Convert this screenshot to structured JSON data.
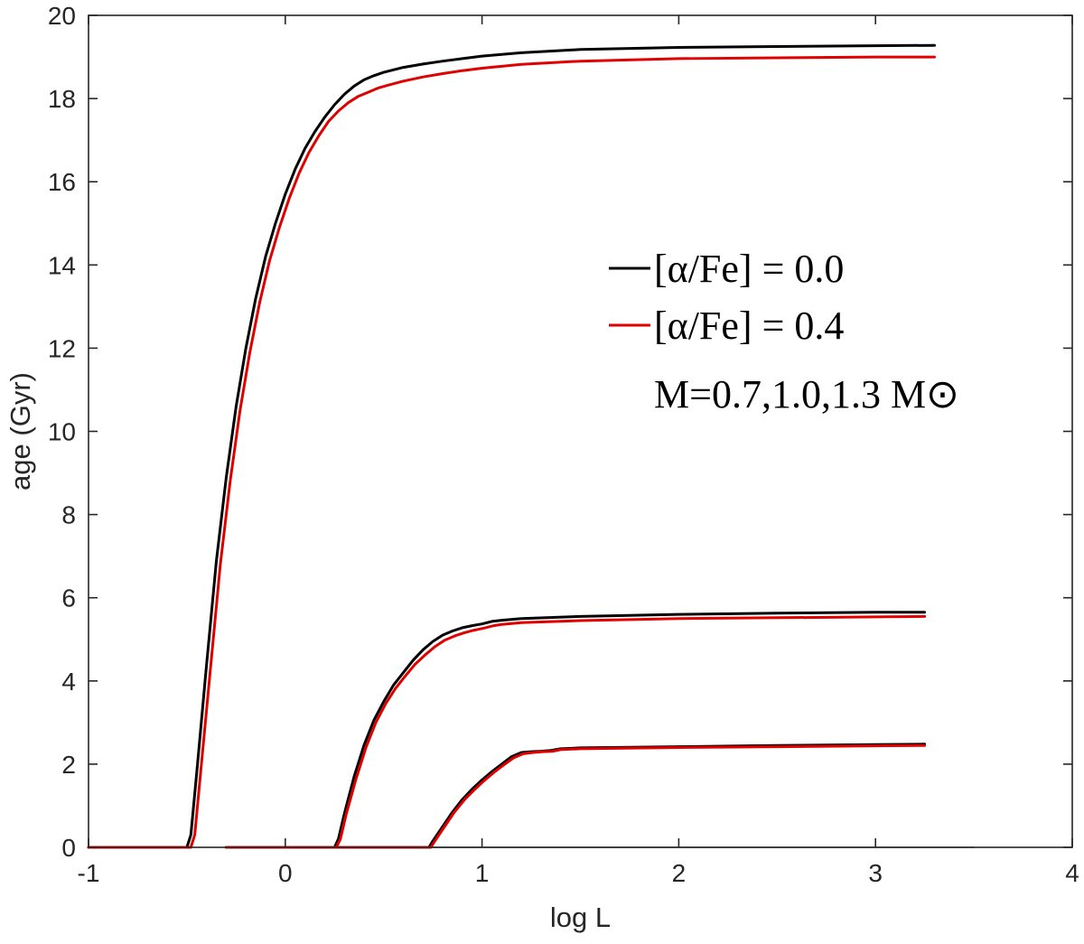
{
  "chart_data": {
    "type": "line",
    "title": "",
    "xlabel": "log L",
    "ylabel": "age (Gyr)",
    "xlim": [
      -1,
      4
    ],
    "ylim": [
      0,
      20
    ],
    "xticks": [
      "-1",
      "0",
      "1",
      "2",
      "3",
      "4"
    ],
    "yticks": [
      "0",
      "2",
      "4",
      "6",
      "8",
      "10",
      "12",
      "14",
      "16",
      "18",
      "20"
    ],
    "grid": false,
    "legend": {
      "placement": "right",
      "entries": [
        {
          "label": "[α/Fe] = 0.0",
          "color": "#000000"
        },
        {
          "label": "[α/Fe] = 0.4",
          "color": "#e00000"
        }
      ],
      "note": "M=0.7,1.0,1.3 M⊙"
    },
    "series": [
      {
        "alpha_fe": "0.0",
        "mass": "0.7",
        "color": "#000000",
        "x": [
          -1.0,
          -0.5,
          -0.48,
          -0.45,
          -0.4,
          -0.35,
          -0.3,
          -0.25,
          -0.2,
          -0.15,
          -0.1,
          -0.05,
          0.0,
          0.05,
          0.1,
          0.15,
          0.2,
          0.25,
          0.3,
          0.35,
          0.4,
          0.45,
          0.5,
          0.6,
          0.7,
          0.8,
          0.9,
          1.0,
          1.2,
          1.5,
          2.0,
          2.5,
          3.0,
          3.3
        ],
        "y": [
          0.0,
          0.0,
          0.3,
          1.8,
          4.4,
          6.9,
          8.9,
          10.6,
          12.0,
          13.2,
          14.2,
          15.0,
          15.7,
          16.3,
          16.8,
          17.2,
          17.55,
          17.85,
          18.1,
          18.3,
          18.45,
          18.55,
          18.63,
          18.75,
          18.83,
          18.9,
          18.96,
          19.02,
          19.1,
          19.18,
          19.23,
          19.25,
          19.27,
          19.28
        ]
      },
      {
        "alpha_fe": "0.4",
        "mass": "0.7",
        "color": "#e00000",
        "x": [
          -1.0,
          -0.48,
          -0.46,
          -0.43,
          -0.38,
          -0.33,
          -0.28,
          -0.23,
          -0.18,
          -0.13,
          -0.08,
          -0.03,
          0.02,
          0.07,
          0.12,
          0.17,
          0.22,
          0.27,
          0.32,
          0.37,
          0.42,
          0.47,
          0.52,
          0.6,
          0.7,
          0.8,
          0.9,
          1.0,
          1.2,
          1.5,
          2.0,
          2.5,
          3.0,
          3.3
        ],
        "y": [
          0.0,
          0.0,
          0.3,
          1.8,
          4.3,
          6.8,
          8.8,
          10.5,
          11.9,
          13.1,
          14.1,
          14.9,
          15.6,
          16.2,
          16.7,
          17.1,
          17.45,
          17.7,
          17.9,
          18.05,
          18.15,
          18.25,
          18.32,
          18.42,
          18.52,
          18.6,
          18.67,
          18.73,
          18.82,
          18.9,
          18.96,
          18.98,
          19.0,
          19.0
        ]
      },
      {
        "alpha_fe": "0.0",
        "mass": "1.0",
        "color": "#000000",
        "x": [
          -0.3,
          0.25,
          0.27,
          0.3,
          0.35,
          0.4,
          0.45,
          0.5,
          0.55,
          0.6,
          0.65,
          0.7,
          0.75,
          0.8,
          0.85,
          0.9,
          0.95,
          1.0,
          1.05,
          1.1,
          1.2,
          1.5,
          2.0,
          2.5,
          3.0,
          3.25
        ],
        "y": [
          0.0,
          0.0,
          0.2,
          0.8,
          1.7,
          2.45,
          3.05,
          3.5,
          3.9,
          4.2,
          4.5,
          4.75,
          4.95,
          5.1,
          5.2,
          5.28,
          5.33,
          5.37,
          5.43,
          5.46,
          5.5,
          5.55,
          5.6,
          5.63,
          5.65,
          5.65
        ]
      },
      {
        "alpha_fe": "0.4",
        "mass": "1.0",
        "color": "#e00000",
        "x": [
          -0.3,
          0.26,
          0.28,
          0.31,
          0.36,
          0.41,
          0.46,
          0.51,
          0.56,
          0.61,
          0.66,
          0.71,
          0.76,
          0.81,
          0.86,
          0.91,
          0.96,
          1.01,
          1.06,
          1.1,
          1.2,
          1.5,
          2.0,
          2.5,
          3.0,
          3.25
        ],
        "y": [
          0.0,
          0.0,
          0.2,
          0.8,
          1.65,
          2.4,
          3.0,
          3.45,
          3.82,
          4.12,
          4.4,
          4.62,
          4.82,
          4.98,
          5.08,
          5.16,
          5.22,
          5.27,
          5.33,
          5.36,
          5.4,
          5.45,
          5.5,
          5.52,
          5.54,
          5.55
        ]
      },
      {
        "alpha_fe": "0.0",
        "mass": "1.3",
        "color": "#000000",
        "x": [
          -0.3,
          0.73,
          0.75,
          0.8,
          0.85,
          0.9,
          0.95,
          1.0,
          1.05,
          1.1,
          1.15,
          1.2,
          1.25,
          1.3,
          1.35,
          1.4,
          1.5,
          2.0,
          2.5,
          3.0,
          3.25
        ],
        "y": [
          0.0,
          0.0,
          0.15,
          0.5,
          0.85,
          1.15,
          1.4,
          1.62,
          1.82,
          2.0,
          2.18,
          2.28,
          2.3,
          2.31,
          2.33,
          2.37,
          2.39,
          2.42,
          2.45,
          2.47,
          2.48
        ]
      },
      {
        "alpha_fe": "0.4",
        "mass": "1.3",
        "color": "#e00000",
        "x": [
          -0.3,
          0.74,
          0.76,
          0.81,
          0.86,
          0.91,
          0.96,
          1.01,
          1.06,
          1.11,
          1.16,
          1.21,
          1.26,
          1.31,
          1.36,
          1.4,
          1.5,
          2.0,
          2.5,
          3.0,
          3.25
        ],
        "y": [
          0.0,
          0.0,
          0.15,
          0.5,
          0.85,
          1.14,
          1.38,
          1.6,
          1.8,
          1.98,
          2.15,
          2.25,
          2.28,
          2.3,
          2.31,
          2.35,
          2.37,
          2.4,
          2.42,
          2.44,
          2.45
        ]
      },
      {
        "alpha_fe": "baseline",
        "mass": "",
        "color": "#555555",
        "x": [
          -0.3,
          3.5
        ],
        "y": [
          0.0,
          0.0
        ]
      }
    ]
  }
}
